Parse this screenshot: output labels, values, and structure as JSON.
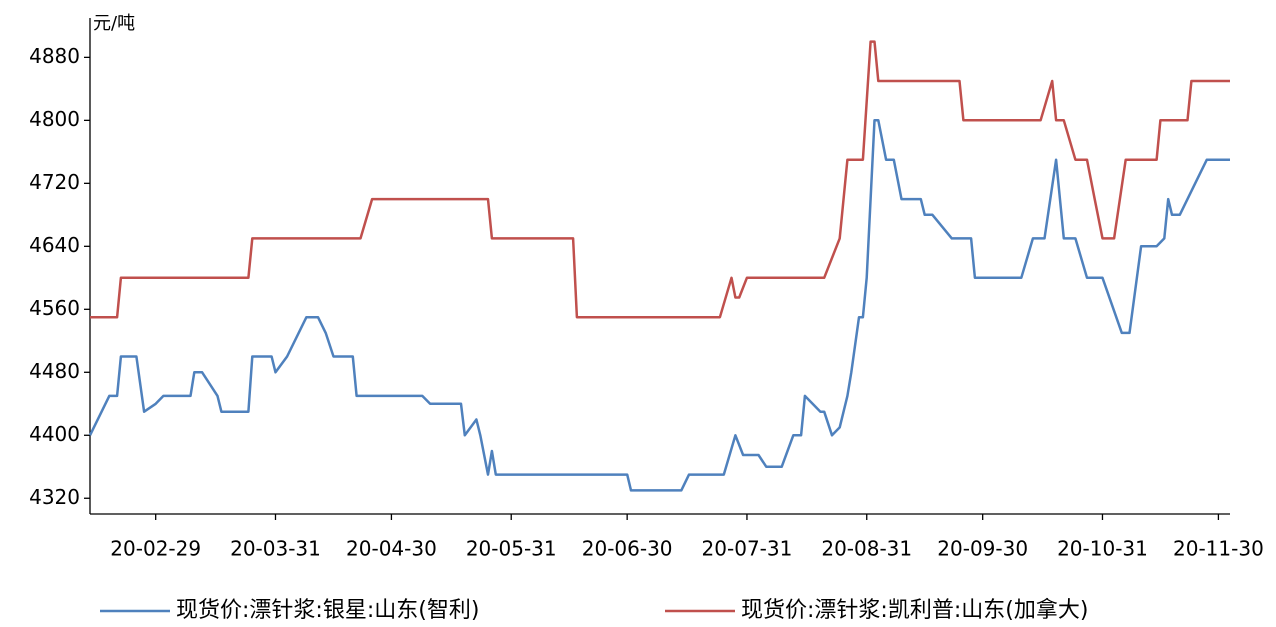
{
  "chart_data": {
    "type": "line",
    "y_unit": "元/吨",
    "xlim": [
      "20-02-12",
      "20-12-03"
    ],
    "xticks": [
      "20-02-29",
      "20-03-31",
      "20-04-30",
      "20-05-31",
      "20-06-30",
      "20-07-31",
      "20-08-31",
      "20-09-30",
      "20-10-31",
      "20-11-30"
    ],
    "ylim": [
      4300,
      4930
    ],
    "yticks": [
      4320,
      4400,
      4480,
      4560,
      4640,
      4720,
      4800,
      4880
    ],
    "legend": "bottom",
    "series": [
      {
        "name": "现货价:漂针浆:银星:山东(智利)",
        "color": "#4f81bd",
        "x": [
          "20-02-12",
          "20-02-17",
          "20-02-19",
          "20-02-20",
          "20-02-24",
          "20-02-26",
          "20-02-29",
          "20-03-02",
          "20-03-09",
          "20-03-10",
          "20-03-12",
          "20-03-16",
          "20-03-17",
          "20-03-24",
          "20-03-25",
          "20-03-30",
          "20-03-31",
          "20-04-03",
          "20-04-08",
          "20-04-11",
          "20-04-13",
          "20-04-15",
          "20-04-20",
          "20-04-21",
          "20-05-08",
          "20-05-10",
          "20-05-18",
          "20-05-19",
          "20-05-22",
          "20-05-23",
          "20-05-25",
          "20-05-26",
          "20-05-27",
          "20-06-30",
          "20-07-01",
          "20-07-14",
          "20-07-16",
          "20-07-25",
          "20-07-28",
          "20-07-30",
          "20-08-03",
          "20-08-05",
          "20-08-09",
          "20-08-12",
          "20-08-14",
          "20-08-15",
          "20-08-19",
          "20-08-20",
          "20-08-22",
          "20-08-24",
          "20-08-26",
          "20-08-27",
          "20-08-29",
          "20-08-30",
          "20-08-31",
          "20-09-02",
          "20-09-03",
          "20-09-05",
          "20-09-07",
          "20-09-09",
          "20-09-14",
          "20-09-15",
          "20-09-17",
          "20-09-22",
          "20-09-27",
          "20-09-28",
          "20-10-10",
          "20-10-13",
          "20-10-16",
          "20-10-19",
          "20-10-21",
          "20-10-24",
          "20-10-27",
          "20-10-31",
          "20-11-05",
          "20-11-07",
          "20-11-10",
          "20-11-14",
          "20-11-16",
          "20-11-17",
          "20-11-18",
          "20-11-20",
          "20-11-22",
          "20-11-24",
          "20-11-27",
          "20-12-03"
        ],
        "values": [
          4400,
          4450,
          4450,
          4500,
          4500,
          4430,
          4440,
          4450,
          4450,
          4480,
          4480,
          4450,
          4430,
          4430,
          4500,
          4500,
          4480,
          4500,
          4550,
          4550,
          4530,
          4500,
          4500,
          4450,
          4450,
          4440,
          4440,
          4400,
          4420,
          4400,
          4350,
          4380,
          4350,
          4350,
          4330,
          4330,
          4350,
          4350,
          4400,
          4375,
          4375,
          4360,
          4360,
          4400,
          4400,
          4450,
          4430,
          4430,
          4400,
          4410,
          4450,
          4480,
          4550,
          4550,
          4600,
          4800,
          4800,
          4750,
          4750,
          4700,
          4700,
          4680,
          4680,
          4650,
          4650,
          4600,
          4600,
          4650,
          4650,
          4750,
          4650,
          4650,
          4600,
          4600,
          4530,
          4530,
          4640,
          4640,
          4650,
          4700,
          4680,
          4680,
          4700,
          4720,
          4750,
          4750
        ]
      },
      {
        "name": "现货价:漂针浆:凯利普:山东(加拿大)",
        "color": "#c0504d",
        "x": [
          "20-02-12",
          "20-02-19",
          "20-02-20",
          "20-03-24",
          "20-03-25",
          "20-04-22",
          "20-04-25",
          "20-05-25",
          "20-05-26",
          "20-06-16",
          "20-06-17",
          "20-07-24",
          "20-07-27",
          "20-07-28",
          "20-07-29",
          "20-07-31",
          "20-08-20",
          "20-08-24",
          "20-08-26",
          "20-08-30",
          "20-09-01",
          "20-09-02",
          "20-09-03",
          "20-09-24",
          "20-09-25",
          "20-10-15",
          "20-10-18",
          "20-10-19",
          "20-10-21",
          "20-10-24",
          "20-10-27",
          "20-10-29",
          "20-10-31",
          "20-11-03",
          "20-11-06",
          "20-11-14",
          "20-11-15",
          "20-11-22",
          "20-11-23",
          "20-12-03"
        ],
        "values": [
          4550,
          4550,
          4600,
          4600,
          4650,
          4650,
          4700,
          4700,
          4650,
          4650,
          4550,
          4550,
          4600,
          4575,
          4575,
          4600,
          4600,
          4650,
          4750,
          4750,
          4900,
          4900,
          4850,
          4850,
          4800,
          4800,
          4850,
          4800,
          4800,
          4750,
          4750,
          4700,
          4650,
          4650,
          4750,
          4750,
          4800,
          4800,
          4850,
          4850
        ]
      }
    ]
  }
}
